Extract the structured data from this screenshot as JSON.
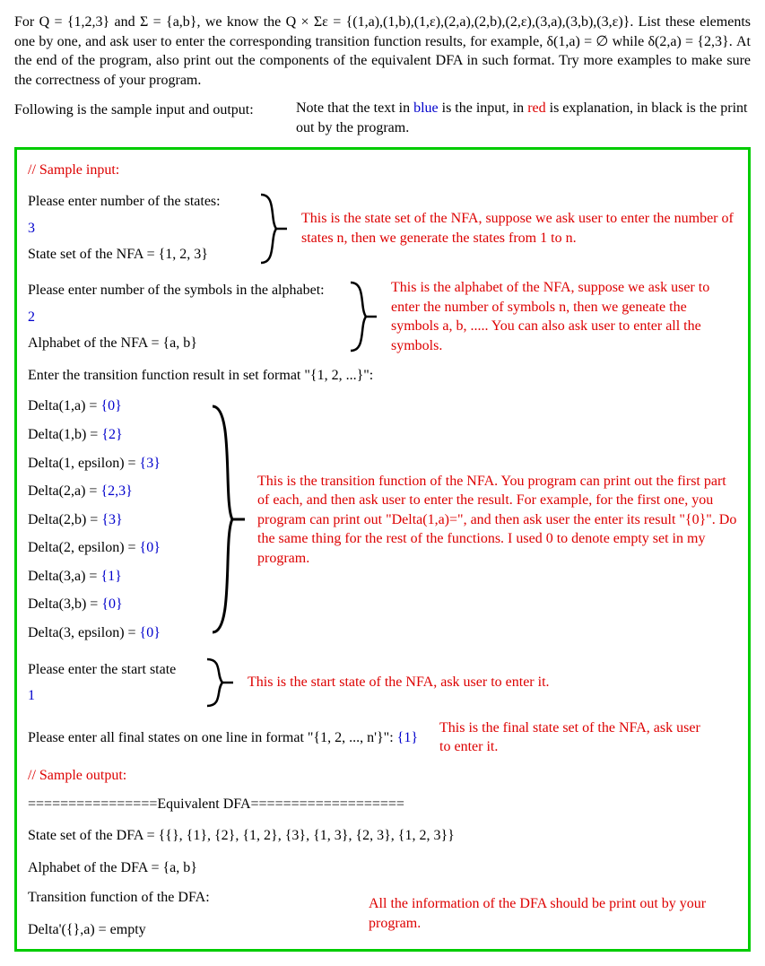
{
  "intro": {
    "paragraph": "For Q = {1,2,3} and Σ = {a,b}, we know the Q × Σε = {(1,a),(1,b),(1,ε),(2,a),(2,b),(2,ε),(3,a),(3,b),(3,ε)}. List these elements one by one, and ask user to enter the corresponding transition function results, for example, δ(1,a) = ∅ while δ(2,a) = {2,3}. At the end of the program, also print out the components of the equivalent DFA in such format. Try more examples to make sure the correctness of your program.",
    "left": "Following is the sample input and output:",
    "right_a": "Note that the text in ",
    "right_blue": "blue",
    "right_b": " is the input, in ",
    "right_red": "red",
    "right_c": " is explanation, in black is the print out by the program."
  },
  "sample_input_label": "// Sample input:",
  "states": {
    "prompt": "Please enter number of the states:",
    "input": "3",
    "result": "State set of the NFA = {1, 2, 3}",
    "note": "This is the state set of the NFA, suppose we ask user to enter the number of states n, then we generate the states from 1 to n."
  },
  "alphabet": {
    "prompt": "Please enter number of the symbols in the alphabet:",
    "input": "2",
    "result": "Alphabet of the NFA = {a, b}",
    "note": "This is the alphabet of the NFA, suppose we ask user to enter the number of symbols n, then we geneate the symbols a, b, ..... You can also ask user to enter all the symbols."
  },
  "trans": {
    "header": "Enter the transition function result in set format \"{1, 2, ...}\":",
    "items": [
      {
        "label": "Delta(1,a) = ",
        "val": "{0}"
      },
      {
        "label": "Delta(1,b) = ",
        "val": "{2}"
      },
      {
        "label": "Delta(1, epsilon) = ",
        "val": "{3}"
      },
      {
        "label": "Delta(2,a) = ",
        "val": "{2,3}"
      },
      {
        "label": "Delta(2,b) = ",
        "val": "{3}"
      },
      {
        "label": "Delta(2, epsilon) = ",
        "val": "{0}"
      },
      {
        "label": "Delta(3,a) = ",
        "val": "{1}"
      },
      {
        "label": "Delta(3,b) = ",
        "val": "{0}"
      },
      {
        "label": "Delta(3, epsilon) = ",
        "val": "{0}"
      }
    ],
    "note": "This is the transition function of the NFA. You program can print out the first part of each, and then ask user to enter the result. For example, for the first one, you program can print out \"Delta(1,a)=\", and then ask user the enter its result \"{0}\". Do the same thing for the rest of the functions. I used 0 to denote empty set in my program."
  },
  "start": {
    "prompt": "Please enter the start state",
    "input": "1",
    "note": "This is the start state of the NFA, ask user to enter it."
  },
  "final": {
    "prompt": "Please enter all final states on one line in format \"{1, 2, ..., n'}\": ",
    "input": "{1}",
    "note": "This is the final state set of the NFA, ask user to enter it."
  },
  "sample_output_label": "// Sample output:",
  "equiv_header": "================Equivalent DFA===================",
  "dfa_state": "State set of the DFA = {{}, {1}, {2}, {1, 2}, {3}, {1, 3}, {2, 3}, {1, 2, 3}}",
  "dfa_alpha": "Alphabet of the DFA = {a, b}",
  "dfa_trans_header": "Transition function of the DFA:",
  "dfa_trans_first": "Delta'({},a) = empty",
  "dfa_note": "All the information of the DFA should be print out by your program."
}
